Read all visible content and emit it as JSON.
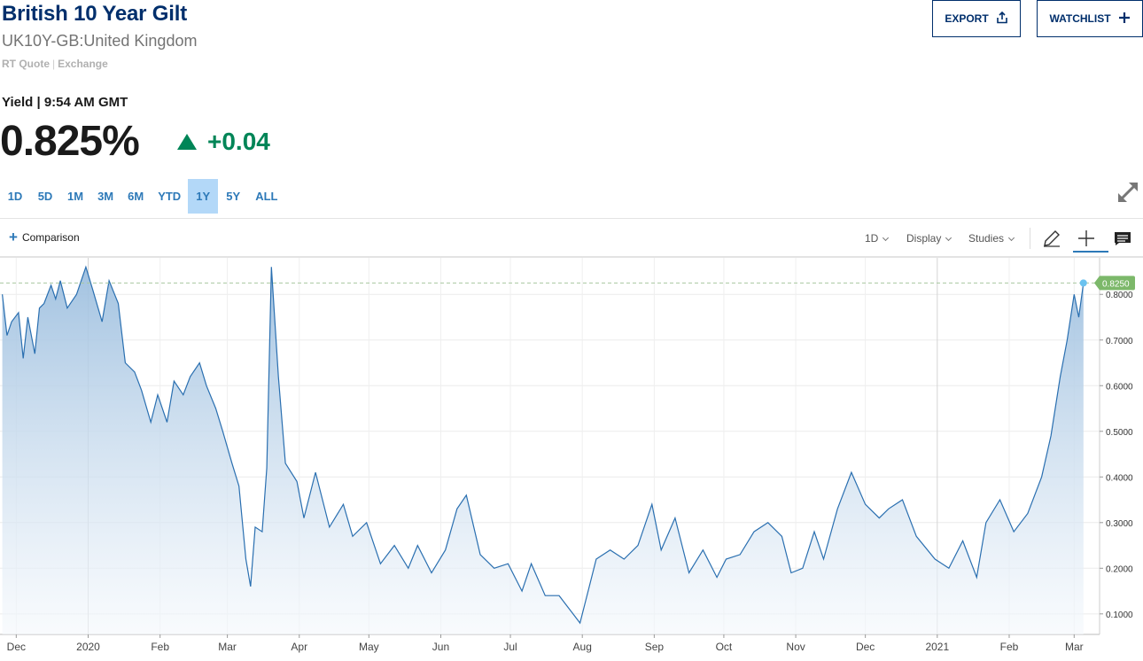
{
  "header": {
    "title": "British 10 Year Gilt",
    "subtitle": "UK10Y-GB:United Kingdom",
    "quote_type": "RT Quote",
    "quote_sep": "|",
    "exchange": "Exchange",
    "export_label": "EXPORT",
    "watchlist_label": "WATCHLIST"
  },
  "quote": {
    "yield_time": "Yield | 9:54 AM GMT",
    "price": "0.825%",
    "change": "+0.04",
    "direction": "up",
    "up_color": "#008557"
  },
  "ranges": [
    {
      "label": "1D",
      "active": false
    },
    {
      "label": "5D",
      "active": false
    },
    {
      "label": "1M",
      "active": false
    },
    {
      "label": "3M",
      "active": false
    },
    {
      "label": "6M",
      "active": false
    },
    {
      "label": "YTD",
      "active": false
    },
    {
      "label": "1Y",
      "active": true
    },
    {
      "label": "5Y",
      "active": false
    },
    {
      "label": "ALL",
      "active": false
    }
  ],
  "toolbar": {
    "comparison_label": "Comparison",
    "interval_label": "1D",
    "display_label": "Display",
    "studies_label": "Studies"
  },
  "icons": {
    "expand": "expand-icon",
    "export": "share-icon",
    "watchlist": "plus-icon",
    "draw": "pencil-icon",
    "crosshair": "crosshair-icon",
    "comments": "comments-icon"
  },
  "colors": {
    "title": "#002f6c",
    "line": "#2a6fb0",
    "fill_top": "#9dbfdf",
    "fill_bottom": "#f4f8fc",
    "last_value_badge": "#7cb86a",
    "active_range": "#b3d8f8"
  },
  "chart_data": {
    "type": "area",
    "x_ticks": [
      "Dec",
      "2020",
      "Feb",
      "Mar",
      "Apr",
      "May",
      "Jun",
      "Jul",
      "Aug",
      "Sep",
      "Oct",
      "Nov",
      "Dec",
      "2021",
      "Feb",
      "Mar"
    ],
    "y_ticks": [
      "0.8000",
      "0.7000",
      "0.6000",
      "0.5000",
      "0.4000",
      "0.3000",
      "0.2000",
      "0.1000"
    ],
    "y_tick_values": [
      0.8,
      0.7,
      0.6,
      0.5,
      0.4,
      0.3,
      0.2,
      0.1
    ],
    "ylim": [
      0.055,
      0.882
    ],
    "last_value": 0.825,
    "last_value_label": "0.8250",
    "grid": true,
    "series": [
      {
        "x": [
          "2019-11-25",
          "2019-11-27",
          "2019-11-29",
          "2019-12-02",
          "2019-12-04",
          "2019-12-06",
          "2019-12-09",
          "2019-12-11",
          "2019-12-13",
          "2019-12-16",
          "2019-12-18",
          "2019-12-20",
          "2019-12-23",
          "2019-12-27",
          "2019-12-31",
          "2020-01-03",
          "2020-01-07",
          "2020-01-10",
          "2020-01-14",
          "2020-01-17",
          "2020-01-21",
          "2020-01-24",
          "2020-01-28",
          "2020-01-31",
          "2020-02-04",
          "2020-02-07",
          "2020-02-11",
          "2020-02-14",
          "2020-02-18",
          "2020-02-21",
          "2020-02-25",
          "2020-02-28",
          "2020-03-03",
          "2020-03-06",
          "2020-03-09",
          "2020-03-11",
          "2020-03-13",
          "2020-03-16",
          "2020-03-18",
          "2020-03-20",
          "2020-03-23",
          "2020-03-26",
          "2020-03-31",
          "2020-04-03",
          "2020-04-08",
          "2020-04-14",
          "2020-04-20",
          "2020-04-24",
          "2020-04-30",
          "2020-05-06",
          "2020-05-12",
          "2020-05-18",
          "2020-05-22",
          "2020-05-28",
          "2020-06-03",
          "2020-06-08",
          "2020-06-12",
          "2020-06-18",
          "2020-06-24",
          "2020-06-30",
          "2020-07-06",
          "2020-07-10",
          "2020-07-16",
          "2020-07-22",
          "2020-07-28",
          "2020-07-31",
          "2020-08-04",
          "2020-08-07",
          "2020-08-13",
          "2020-08-19",
          "2020-08-25",
          "2020-08-31",
          "2020-09-04",
          "2020-09-10",
          "2020-09-16",
          "2020-09-22",
          "2020-09-28",
          "2020-10-02",
          "2020-10-08",
          "2020-10-14",
          "2020-10-20",
          "2020-10-26",
          "2020-10-30",
          "2020-11-04",
          "2020-11-09",
          "2020-11-13",
          "2020-11-19",
          "2020-11-25",
          "2020-12-01",
          "2020-12-07",
          "2020-12-11",
          "2020-12-17",
          "2020-12-23",
          "2020-12-31",
          "2021-01-06",
          "2021-01-12",
          "2021-01-18",
          "2021-01-22",
          "2021-01-28",
          "2021-02-03",
          "2021-02-09",
          "2021-02-15",
          "2021-02-19",
          "2021-02-23",
          "2021-02-26",
          "2021-03-01",
          "2021-03-03",
          "2021-03-05"
        ],
        "y": [
          0.8,
          0.71,
          0.74,
          0.76,
          0.66,
          0.75,
          0.67,
          0.77,
          0.78,
          0.82,
          0.79,
          0.83,
          0.77,
          0.8,
          0.86,
          0.81,
          0.74,
          0.83,
          0.78,
          0.65,
          0.63,
          0.59,
          0.52,
          0.58,
          0.52,
          0.61,
          0.58,
          0.62,
          0.65,
          0.6,
          0.55,
          0.5,
          0.43,
          0.38,
          0.22,
          0.16,
          0.29,
          0.28,
          0.42,
          0.86,
          0.62,
          0.43,
          0.39,
          0.31,
          0.41,
          0.29,
          0.34,
          0.27,
          0.3,
          0.21,
          0.25,
          0.2,
          0.25,
          0.19,
          0.24,
          0.33,
          0.36,
          0.23,
          0.2,
          0.21,
          0.15,
          0.21,
          0.14,
          0.14,
          0.1,
          0.08,
          0.16,
          0.22,
          0.24,
          0.22,
          0.25,
          0.34,
          0.24,
          0.31,
          0.19,
          0.24,
          0.18,
          0.22,
          0.23,
          0.28,
          0.3,
          0.27,
          0.19,
          0.2,
          0.28,
          0.22,
          0.33,
          0.41,
          0.34,
          0.31,
          0.33,
          0.35,
          0.27,
          0.22,
          0.2,
          0.26,
          0.18,
          0.3,
          0.35,
          0.28,
          0.32,
          0.4,
          0.49,
          0.62,
          0.7,
          0.8,
          0.75,
          0.825
        ]
      }
    ]
  }
}
